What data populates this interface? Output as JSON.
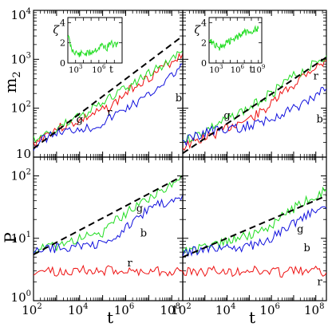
{
  "figure": {
    "axis_labels": {
      "top_ylabel_base": "m",
      "top_ylabel_sub": "2",
      "bottom_ylabel": "P",
      "xlabel": "t",
      "inset_ylabel": "ζ",
      "inset_xlabel": "t"
    },
    "colors": {
      "red": "#ee1111",
      "green": "#22dd22",
      "blue": "#1111dd",
      "fit": "#000000"
    }
  },
  "chart_data": [
    {
      "panel": "top-left",
      "type": "line",
      "xscale": "log",
      "yscale": "log",
      "xlim": [
        100,
        300000000
      ],
      "ylim": [
        10,
        10000
      ],
      "xticks": [],
      "yticks": [
        "10",
        "10^2",
        "10^3",
        "10^4"
      ],
      "ylabel": "m_2",
      "series": [
        {
          "name": "r",
          "color": "red",
          "x": [
            100,
            300,
            1000,
            3000,
            10000,
            30000,
            100000,
            300000,
            1000000,
            3000000,
            10000000,
            30000000,
            100000000,
            300000000
          ],
          "y": [
            18,
            28,
            38,
            45,
            55,
            70,
            90,
            120,
            200,
            310,
            420,
            600,
            900,
            1300
          ]
        },
        {
          "name": "g",
          "color": "green",
          "x": [
            100,
            300,
            1000,
            3000,
            10000,
            30000,
            100000,
            300000,
            1000000,
            3000000,
            10000000,
            30000000,
            100000000,
            300000000
          ],
          "y": [
            22,
            28,
            38,
            50,
            70,
            90,
            120,
            180,
            250,
            350,
            500,
            700,
            1000,
            1500
          ]
        },
        {
          "name": "b",
          "color": "blue",
          "x": [
            100,
            300,
            1000,
            3000,
            10000,
            30000,
            100000,
            300000,
            1000000,
            3000000,
            10000000,
            30000000,
            100000000,
            300000000
          ],
          "y": [
            16,
            24,
            32,
            34,
            40,
            40,
            50,
            70,
            100,
            130,
            180,
            300,
            450,
            800
          ]
        },
        {
          "name": "",
          "color": "fit",
          "dashed": true,
          "x": [
            100,
            300000000
          ],
          "y": [
            15,
            3000
          ]
        }
      ],
      "inset": {
        "xscale": "log",
        "xlim": [
          100,
          1000000000
        ],
        "ylim": [
          0,
          4.5
        ],
        "xticks": [
          "10^3",
          "10^6"
        ],
        "yticks": [
          "0",
          "2",
          "4"
        ],
        "series": [
          {
            "name": "",
            "color": "green",
            "x": [
              100,
              300,
              1000,
              3000,
              10000,
              30000,
              100000,
              300000,
              1000000,
              3000000,
              10000000,
              30000000,
              100000000,
              300000000
            ],
            "y": [
              2.8,
              1.3,
              1.1,
              0.8,
              1.0,
              0.9,
              1.1,
              1.3,
              1.5,
              1.8,
              1.4,
              2.0,
              1.7,
              2.1
            ]
          }
        ]
      }
    },
    {
      "panel": "top-right",
      "type": "line",
      "xscale": "log",
      "yscale": "log",
      "xlim": [
        100,
        300000000
      ],
      "ylim": [
        10,
        10000
      ],
      "xticks": [],
      "yticks": [],
      "series": [
        {
          "name": "r",
          "color": "red",
          "x": [
            100,
            300,
            1000,
            3000,
            10000,
            30000,
            100000,
            300000,
            1000000,
            3000000,
            10000000,
            30000000,
            100000000,
            300000000
          ],
          "y": [
            16,
            20,
            25,
            30,
            40,
            50,
            60,
            80,
            120,
            200,
            300,
            500,
            700,
            900
          ]
        },
        {
          "name": "g",
          "color": "green",
          "x": [
            100,
            300,
            1000,
            3000,
            10000,
            30000,
            100000,
            300000,
            1000000,
            3000000,
            10000000,
            30000000,
            100000000,
            300000000
          ],
          "y": [
            22,
            26,
            35,
            45,
            60,
            80,
            100,
            150,
            200,
            300,
            450,
            600,
            900,
            1200
          ]
        },
        {
          "name": "b",
          "color": "blue",
          "x": [
            100,
            300,
            1000,
            3000,
            10000,
            30000,
            100000,
            300000,
            1000000,
            3000000,
            10000000,
            30000000,
            100000000,
            300000000
          ],
          "y": [
            20,
            25,
            32,
            35,
            35,
            38,
            45,
            50,
            60,
            80,
            100,
            130,
            180,
            250
          ]
        },
        {
          "name": "",
          "color": "fit",
          "dashed": true,
          "x": [
            100,
            300000000
          ],
          "y": [
            12,
            1100
          ]
        }
      ],
      "inset": {
        "xscale": "log",
        "xlim": [
          100,
          3000000000
        ],
        "ylim": [
          0,
          4.5
        ],
        "xticks": [
          "10^3",
          "10^6",
          "10^9"
        ],
        "yticks": [
          "0",
          "2",
          "4"
        ],
        "series": [
          {
            "name": "",
            "color": "green",
            "x": [
              100,
              300,
              1000,
              3000,
              10000,
              30000,
              100000,
              300000,
              1000000,
              3000000,
              10000000,
              30000000,
              100000000,
              300000000,
              1000000000
            ],
            "y": [
              2.5,
              2.0,
              1.8,
              1.5,
              1.8,
              2.0,
              2.2,
              2.4,
              2.6,
              2.8,
              3.0,
              3.1,
              3.2,
              3.3,
              3.4
            ]
          }
        ]
      }
    },
    {
      "panel": "bottom-left",
      "type": "line",
      "xscale": "log",
      "yscale": "log",
      "xlim": [
        100,
        300000000
      ],
      "ylim": [
        1,
        200
      ],
      "xticks": [
        "10^2",
        "10^4",
        "10^6",
        "10^8"
      ],
      "yticks": [
        "10^0",
        "10^1",
        "10^2"
      ],
      "ylabel": "P",
      "xlabel": "t",
      "series": [
        {
          "name": "r",
          "color": "red",
          "x": [
            100,
            300,
            1000,
            3000,
            10000,
            30000,
            100000,
            300000,
            1000000,
            3000000,
            10000000,
            30000000,
            100000000,
            300000000
          ],
          "y": [
            3.0,
            3.1,
            2.8,
            3.0,
            3.2,
            2.9,
            3.0,
            3.1,
            3.0,
            2.9,
            3.1,
            3.0,
            2.9,
            3.0
          ]
        },
        {
          "name": "g",
          "color": "green",
          "x": [
            100,
            300,
            1000,
            3000,
            10000,
            30000,
            100000,
            300000,
            1000000,
            3000000,
            10000000,
            30000000,
            100000000,
            300000000
          ],
          "y": [
            6.5,
            7.0,
            7.5,
            8.5,
            10,
            11,
            12,
            18,
            25,
            35,
            45,
            55,
            70,
            95
          ]
        },
        {
          "name": "b",
          "color": "blue",
          "x": [
            100,
            300,
            1000,
            3000,
            10000,
            30000,
            100000,
            300000,
            1000000,
            3000000,
            10000000,
            30000000,
            100000000,
            300000000
          ],
          "y": [
            6.0,
            6.5,
            7.0,
            7.2,
            7.5,
            7.8,
            8.0,
            9.0,
            15,
            22,
            28,
            35,
            42,
            50
          ]
        },
        {
          "name": "",
          "color": "fit",
          "dashed": true,
          "x": [
            100,
            300000000
          ],
          "y": [
            5.5,
            100
          ]
        }
      ]
    },
    {
      "panel": "bottom-right",
      "type": "line",
      "xscale": "log",
      "yscale": "log",
      "xlim": [
        100,
        300000000
      ],
      "ylim": [
        1,
        200
      ],
      "xticks": [
        "10^2",
        "10^4",
        "10^6",
        "10^8"
      ],
      "yticks": [],
      "xlabel": "t",
      "series": [
        {
          "name": "r",
          "color": "red",
          "x": [
            100,
            300,
            1000,
            3000,
            10000,
            30000,
            100000,
            300000,
            1000000,
            3000000,
            10000000,
            30000000,
            100000000,
            300000000
          ],
          "y": [
            2.8,
            3.0,
            2.9,
            3.1,
            2.8,
            3.0,
            3.2,
            2.9,
            3.0,
            2.8,
            3.1,
            2.9,
            3.0,
            2.8
          ]
        },
        {
          "name": "g",
          "color": "green",
          "x": [
            100,
            300,
            1000,
            3000,
            10000,
            30000,
            100000,
            300000,
            1000000,
            3000000,
            10000000,
            30000000,
            100000000,
            300000000
          ],
          "y": [
            6.0,
            6.5,
            7.0,
            8.0,
            9.0,
            10,
            11,
            13,
            16,
            22,
            30,
            38,
            48,
            60
          ]
        },
        {
          "name": "b",
          "color": "blue",
          "x": [
            100,
            300,
            1000,
            3000,
            10000,
            30000,
            100000,
            300000,
            1000000,
            3000000,
            10000000,
            30000000,
            100000000,
            300000000
          ],
          "y": [
            6.0,
            6.2,
            6.5,
            6.8,
            7.0,
            7.0,
            7.5,
            8.5,
            10,
            13,
            17,
            22,
            27,
            30
          ]
        },
        {
          "name": "",
          "color": "fit",
          "dashed": true,
          "x": [
            100,
            300000000
          ],
          "y": [
            5.0,
            48
          ]
        }
      ]
    }
  ]
}
